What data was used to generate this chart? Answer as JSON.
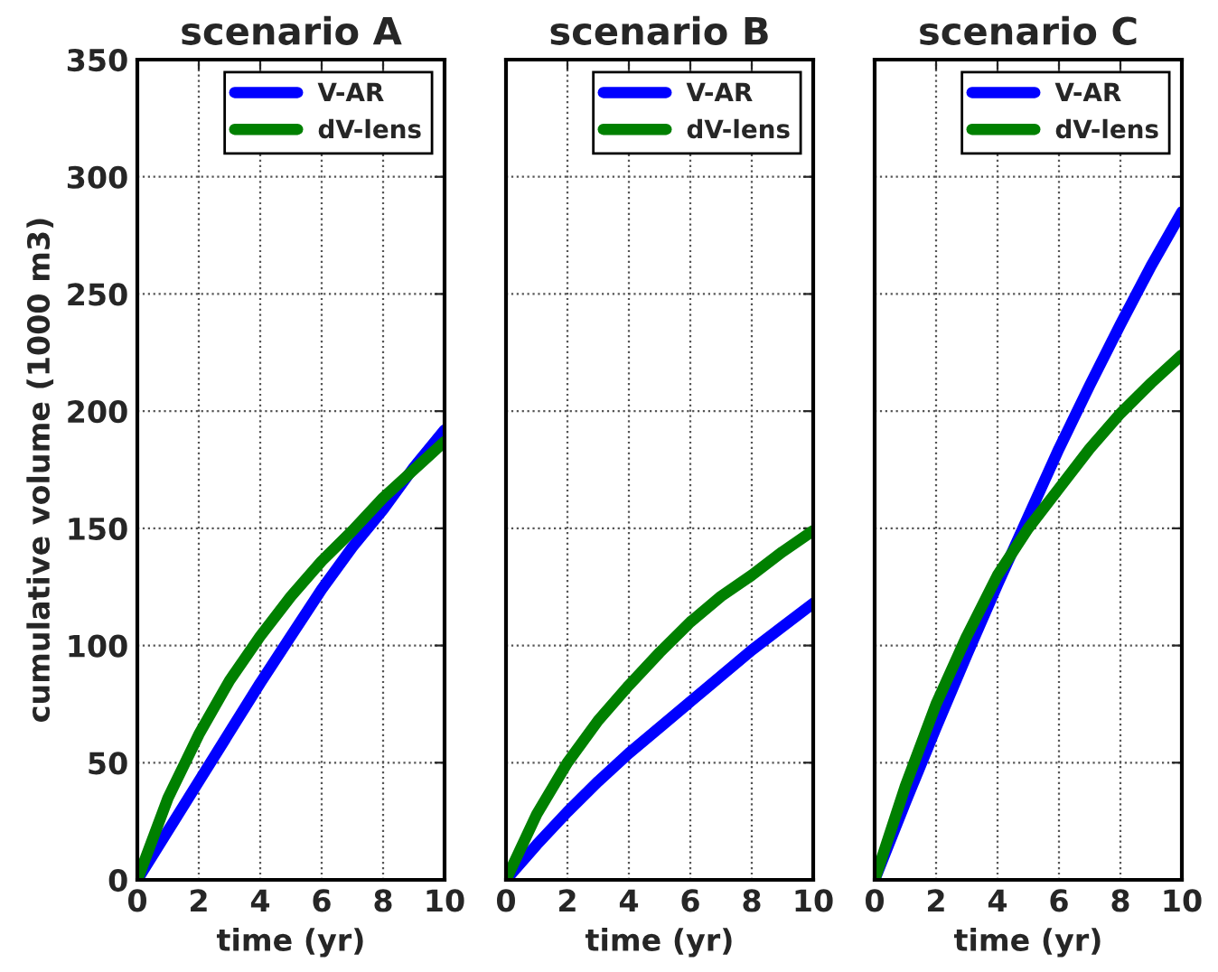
{
  "chart_data": [
    {
      "type": "line",
      "title": "scenario A",
      "xlabel": "time (yr)",
      "ylabel": "cumulative volume (1000 m3)",
      "x": [
        0,
        1,
        2,
        3,
        4,
        5,
        6,
        7,
        8,
        9,
        10
      ],
      "xlim": [
        0,
        10
      ],
      "xticks": [
        0,
        2,
        4,
        6,
        8,
        10
      ],
      "ylim": [
        0,
        350
      ],
      "yticks": [
        0,
        50,
        100,
        150,
        200,
        250,
        300,
        350
      ],
      "grid": true,
      "legend": "top right",
      "series": [
        {
          "name": "V-AR",
          "color": "#0000ff",
          "values": [
            0,
            21,
            42,
            63,
            84,
            104,
            124,
            142,
            158,
            176,
            192
          ]
        },
        {
          "name": "dV-lens",
          "color": "#008000",
          "values": [
            0,
            35,
            62,
            85,
            104,
            121,
            136,
            149,
            163,
            175,
            187
          ]
        }
      ]
    },
    {
      "type": "line",
      "title": "scenario B",
      "xlabel": "time (yr)",
      "x": [
        0,
        1,
        2,
        3,
        4,
        5,
        6,
        7,
        8,
        9,
        10
      ],
      "xlim": [
        0,
        10
      ],
      "xticks": [
        0,
        2,
        4,
        6,
        8,
        10
      ],
      "ylim": [
        0,
        350
      ],
      "yticks": [
        0,
        50,
        100,
        150,
        200,
        250,
        300,
        350
      ],
      "grid": true,
      "legend": "top right",
      "tick_labels": "x",
      "series": [
        {
          "name": "V-AR",
          "color": "#0000ff",
          "values": [
            0,
            15,
            29,
            42,
            54,
            65,
            76,
            87,
            98,
            108,
            118
          ]
        },
        {
          "name": "dV-lens",
          "color": "#008000",
          "values": [
            0,
            28,
            50,
            68,
            83,
            97,
            110,
            121,
            130,
            140,
            149
          ]
        }
      ]
    },
    {
      "type": "line",
      "title": "scenario C",
      "xlabel": "time (yr)",
      "x": [
        0,
        1,
        2,
        3,
        4,
        5,
        6,
        7,
        8,
        9,
        10
      ],
      "xlim": [
        0,
        10
      ],
      "xticks": [
        0,
        2,
        4,
        6,
        8,
        10
      ],
      "ylim": [
        0,
        350
      ],
      "yticks": [
        0,
        50,
        100,
        150,
        200,
        250,
        300,
        350
      ],
      "grid": true,
      "legend": "top right",
      "tick_labels": "x",
      "series": [
        {
          "name": "V-AR",
          "color": "#0000ff",
          "values": [
            0,
            33,
            65,
            96,
            126,
            155,
            184,
            211,
            237,
            262,
            285
          ]
        },
        {
          "name": "dV-lens",
          "color": "#008000",
          "values": [
            0,
            40,
            75,
            104,
            130,
            150,
            167,
            184,
            199,
            212,
            224
          ]
        }
      ]
    }
  ]
}
